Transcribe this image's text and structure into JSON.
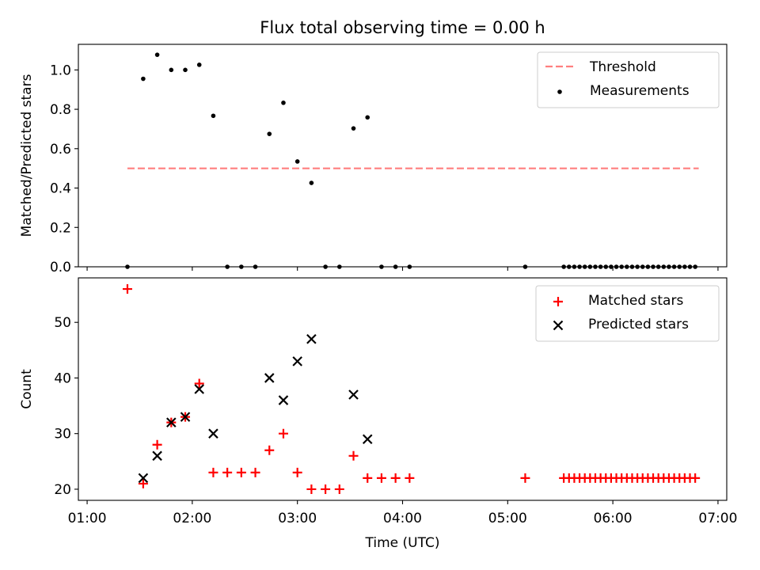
{
  "chart_data": [
    {
      "type": "scatter",
      "title": "Flux total observing time = 0.00 h",
      "xlabel": "",
      "ylabel": "Matched/Predicted stars",
      "xlim": [
        "00:55",
        "07:05"
      ],
      "ylim": [
        0,
        1.13
      ],
      "xticks": [
        "01:00",
        "02:00",
        "03:00",
        "04:00",
        "05:00",
        "06:00",
        "07:00"
      ],
      "show_xticklabels": false,
      "yticks": [
        "0.0",
        "0.2",
        "0.4",
        "0.6",
        "0.8",
        "1.0"
      ],
      "grid": false,
      "legend_position": "top-right",
      "threshold": {
        "name": "Threshold",
        "color": "#ff7f7f",
        "style": "dashed",
        "y": 0.5,
        "x_start": "01:23",
        "x_end": "06:49"
      },
      "series": [
        {
          "name": "Measurements",
          "color": "#000000",
          "marker": "dot",
          "points": [
            [
              "01:23",
              0.0
            ],
            [
              "01:32",
              0.955
            ],
            [
              "01:40",
              1.077
            ],
            [
              "01:48",
              1.0
            ],
            [
              "01:56",
              1.0
            ],
            [
              "02:04",
              1.026
            ],
            [
              "02:12",
              0.767
            ],
            [
              "02:20",
              0.0
            ],
            [
              "02:28",
              0.0
            ],
            [
              "02:36",
              0.0
            ],
            [
              "02:44",
              0.675
            ],
            [
              "02:52",
              0.833
            ],
            [
              "03:00",
              0.535
            ],
            [
              "03:08",
              0.426
            ],
            [
              "03:16",
              0.0
            ],
            [
              "03:24",
              0.0
            ],
            [
              "03:32",
              0.703
            ],
            [
              "03:40",
              0.759
            ],
            [
              "03:48",
              0.0
            ],
            [
              "03:56",
              0.0
            ],
            [
              "04:04",
              0.0
            ],
            [
              "05:10",
              0.0
            ],
            [
              "05:32",
              0.0
            ],
            [
              "05:35",
              0.0
            ],
            [
              "05:38",
              0.0
            ],
            [
              "05:41",
              0.0
            ],
            [
              "05:44",
              0.0
            ],
            [
              "05:47",
              0.0
            ],
            [
              "05:50",
              0.0
            ],
            [
              "05:53",
              0.0
            ],
            [
              "05:56",
              0.0
            ],
            [
              "05:59",
              0.0
            ],
            [
              "06:02",
              0.0
            ],
            [
              "06:05",
              0.0
            ],
            [
              "06:08",
              0.0
            ],
            [
              "06:11",
              0.0
            ],
            [
              "06:14",
              0.0
            ],
            [
              "06:17",
              0.0
            ],
            [
              "06:20",
              0.0
            ],
            [
              "06:23",
              0.0
            ],
            [
              "06:26",
              0.0
            ],
            [
              "06:29",
              0.0
            ],
            [
              "06:32",
              0.0
            ],
            [
              "06:35",
              0.0
            ],
            [
              "06:38",
              0.0
            ],
            [
              "06:41",
              0.0
            ],
            [
              "06:44",
              0.0
            ],
            [
              "06:47",
              0.0
            ]
          ]
        }
      ]
    },
    {
      "type": "scatter",
      "title": "",
      "xlabel": "Time (UTC)",
      "ylabel": "Count",
      "xlim": [
        "00:55",
        "07:05"
      ],
      "ylim": [
        18,
        58
      ],
      "xticks": [
        "01:00",
        "02:00",
        "03:00",
        "04:00",
        "05:00",
        "06:00",
        "07:00"
      ],
      "show_xticklabels": true,
      "yticks": [
        "20",
        "30",
        "40",
        "50"
      ],
      "grid": false,
      "legend_position": "top-right",
      "series": [
        {
          "name": "Matched stars",
          "color": "#ff0000",
          "marker": "plus",
          "points": [
            [
              "01:23",
              56
            ],
            [
              "01:32",
              21
            ],
            [
              "01:40",
              28
            ],
            [
              "01:48",
              32
            ],
            [
              "01:56",
              33
            ],
            [
              "02:04",
              39
            ],
            [
              "02:12",
              23
            ],
            [
              "02:20",
              23
            ],
            [
              "02:28",
              23
            ],
            [
              "02:36",
              23
            ],
            [
              "02:44",
              27
            ],
            [
              "02:52",
              30
            ],
            [
              "03:00",
              23
            ],
            [
              "03:08",
              20
            ],
            [
              "03:16",
              20
            ],
            [
              "03:24",
              20
            ],
            [
              "03:32",
              26
            ],
            [
              "03:40",
              22
            ],
            [
              "03:48",
              22
            ],
            [
              "03:56",
              22
            ],
            [
              "04:04",
              22
            ],
            [
              "05:10",
              22
            ],
            [
              "05:32",
              22
            ],
            [
              "05:35",
              22
            ],
            [
              "05:38",
              22
            ],
            [
              "05:41",
              22
            ],
            [
              "05:44",
              22
            ],
            [
              "05:47",
              22
            ],
            [
              "05:50",
              22
            ],
            [
              "05:53",
              22
            ],
            [
              "05:56",
              22
            ],
            [
              "05:59",
              22
            ],
            [
              "06:02",
              22
            ],
            [
              "06:05",
              22
            ],
            [
              "06:08",
              22
            ],
            [
              "06:11",
              22
            ],
            [
              "06:14",
              22
            ],
            [
              "06:17",
              22
            ],
            [
              "06:20",
              22
            ],
            [
              "06:23",
              22
            ],
            [
              "06:26",
              22
            ],
            [
              "06:29",
              22
            ],
            [
              "06:32",
              22
            ],
            [
              "06:35",
              22
            ],
            [
              "06:38",
              22
            ],
            [
              "06:41",
              22
            ],
            [
              "06:44",
              22
            ],
            [
              "06:47",
              22
            ]
          ]
        },
        {
          "name": "Predicted stars",
          "color": "#000000",
          "marker": "x",
          "points": [
            [
              "01:32",
              22
            ],
            [
              "01:40",
              26
            ],
            [
              "01:48",
              32
            ],
            [
              "01:56",
              33
            ],
            [
              "02:04",
              38
            ],
            [
              "02:12",
              30
            ],
            [
              "02:44",
              40
            ],
            [
              "02:52",
              36
            ],
            [
              "03:00",
              43
            ],
            [
              "03:08",
              47
            ],
            [
              "03:32",
              37
            ],
            [
              "03:40",
              29
            ]
          ]
        }
      ]
    }
  ]
}
